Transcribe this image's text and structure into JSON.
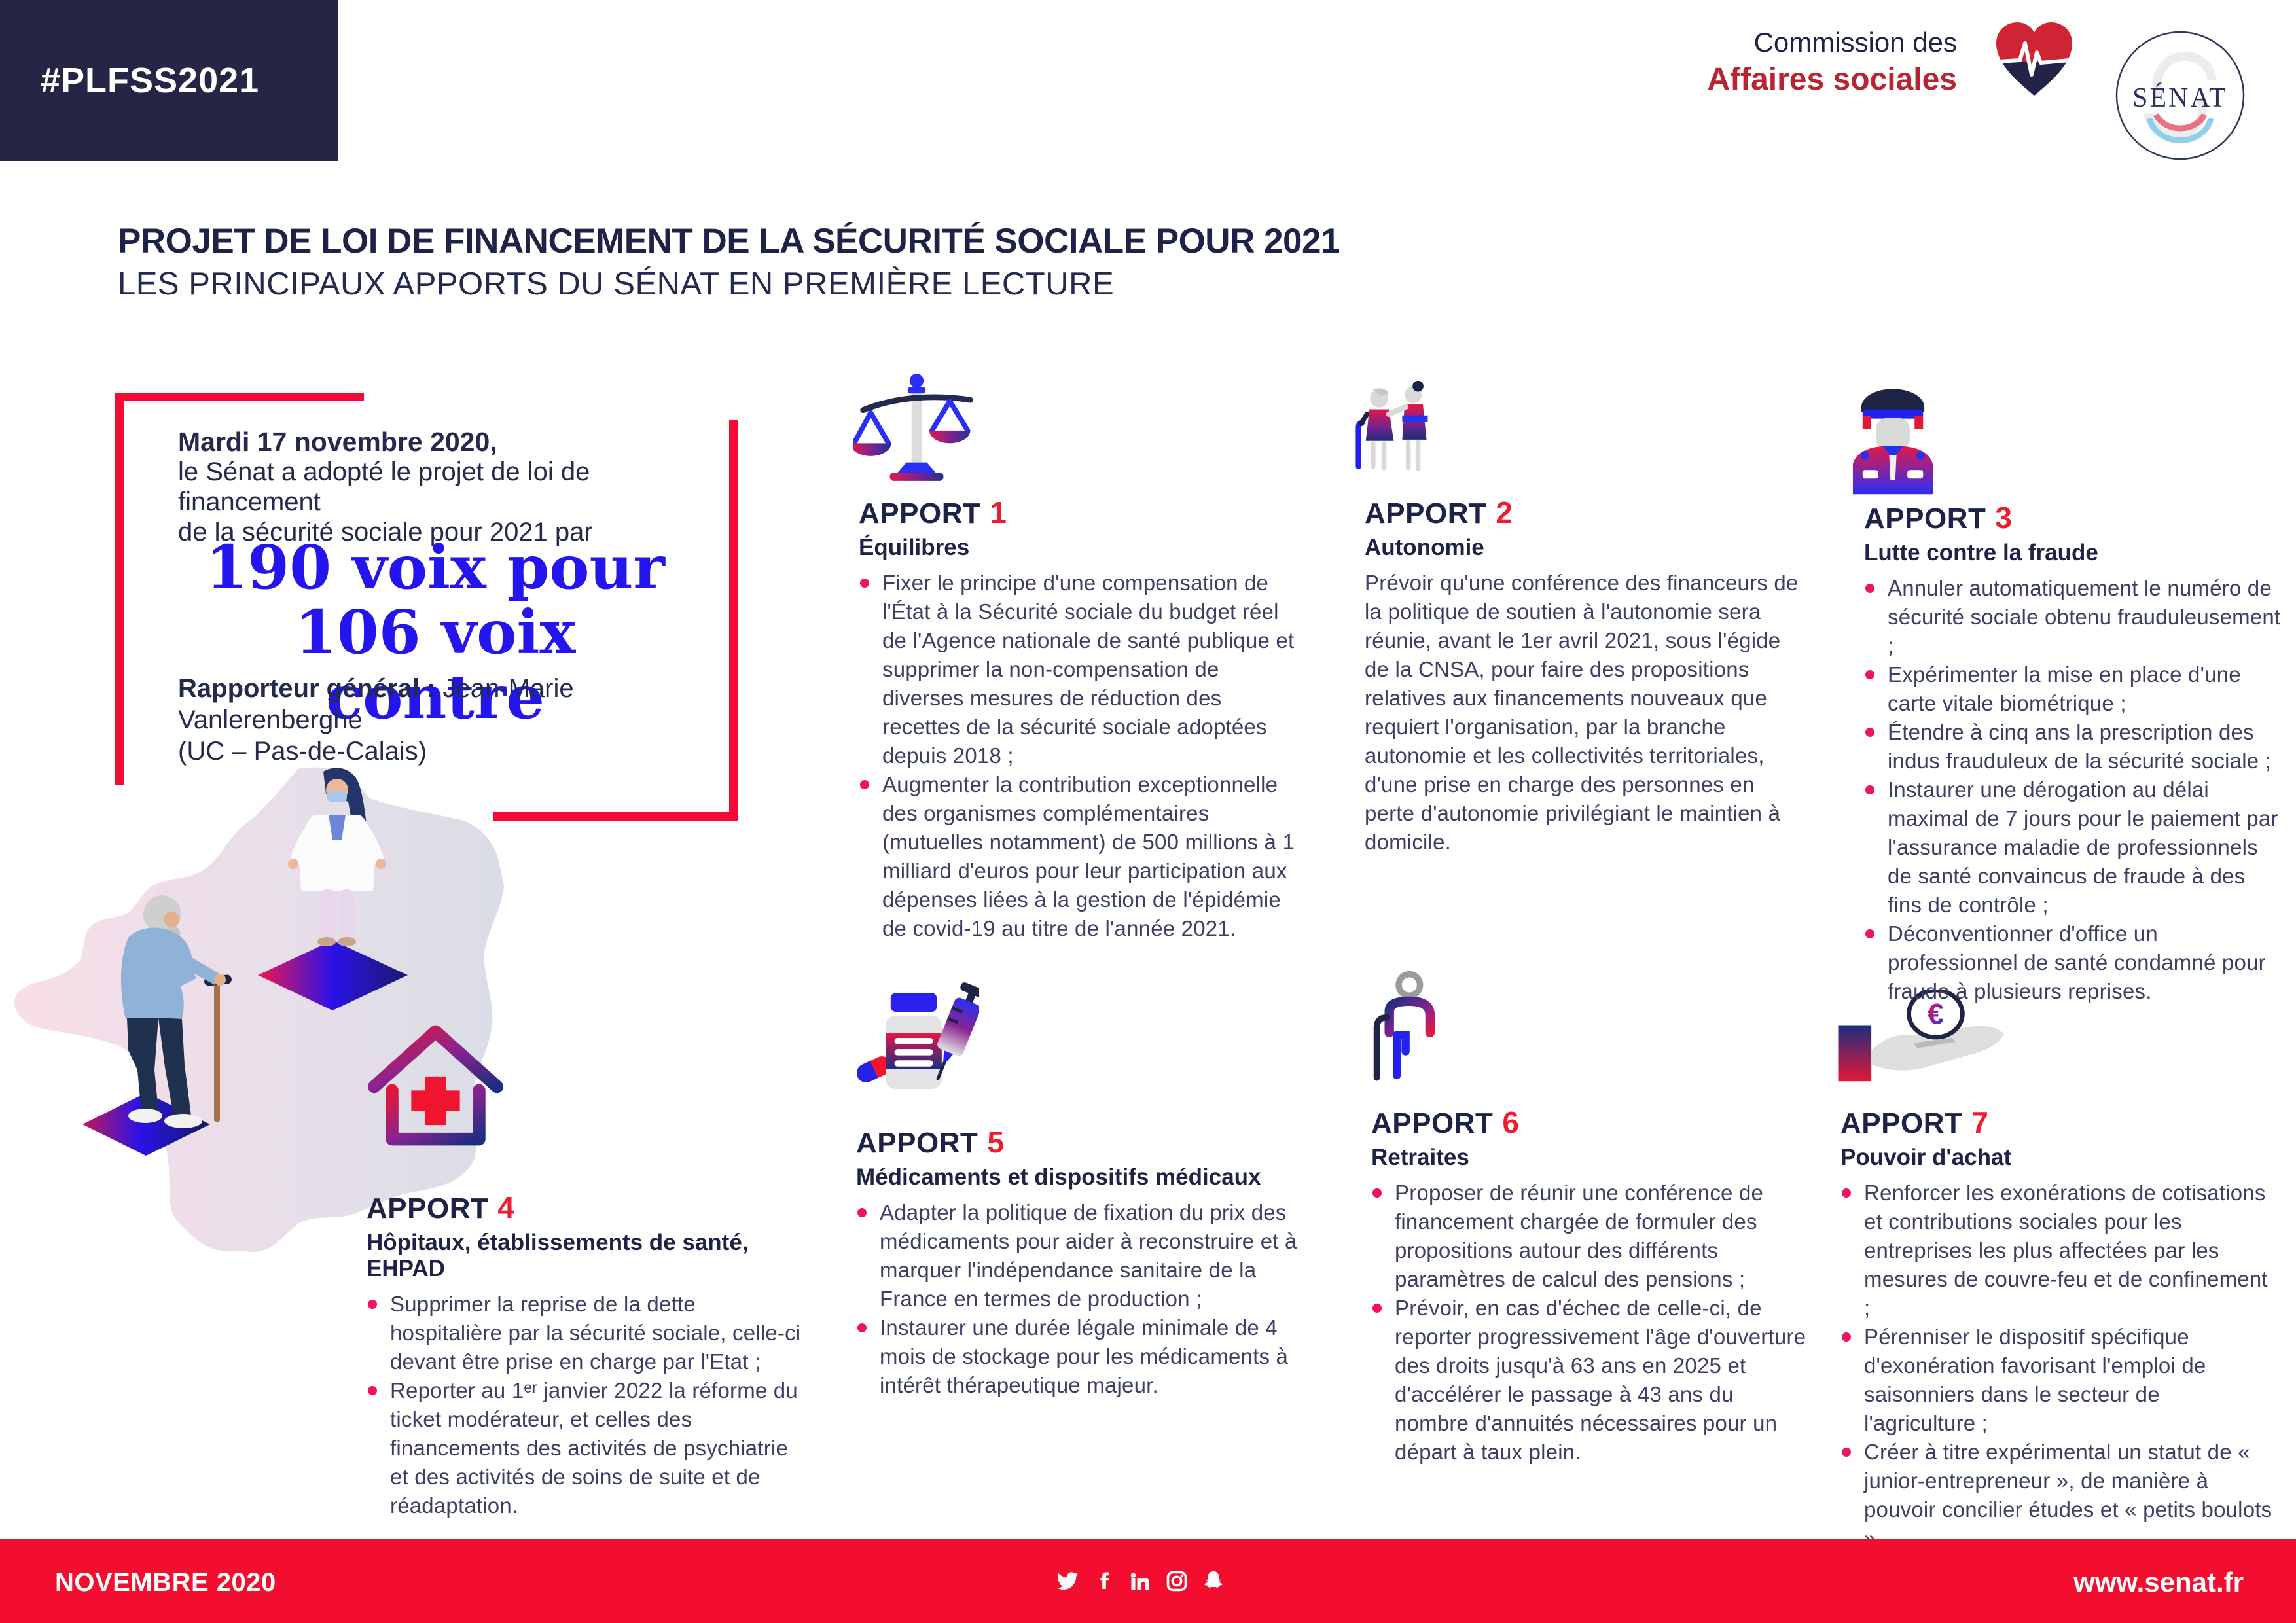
{
  "badge": {
    "hashtag": "#PLFSS2021"
  },
  "header": {
    "commission_line1": "Commission des",
    "commission_line2": "Affaires sociales",
    "senat_logo_text": "SÉNAT",
    "title_line1": "PROJET DE LOI DE FINANCEMENT DE LA SÉCURITÉ SOCIALE POUR 2021",
    "title_line2": "LES PRINCIPAUX APPORTS DU SÉNAT EN PREMIÈRE LECTURE"
  },
  "vote_box": {
    "date_bold": "Mardi 17 novembre 2020,",
    "line2": "le Sénat a adopté le projet de loi de financement",
    "line3": "de la sécurité sociale pour 2021 par",
    "votes_for": "190 voix pour",
    "votes_against": "106 voix contre",
    "rapporteur_label": "Rapporteur général :",
    "rapporteur_name": " Jean-Marie Vanlerenberghe",
    "rapporteur_line2": "(UC – Pas-de-Calais)"
  },
  "apports": [
    {
      "label": "APPORT",
      "number": "1",
      "subtitle": "Équilibres",
      "icon": "scales-icon",
      "bullets": [
        "Fixer le principe d'une compensation de l'État à la Sécurité sociale du budget réel de l'Agence nationale de santé publique et supprimer la non-compensation de diverses mesures de réduction des recettes de la sécurité sociale adoptées depuis 2018 ;",
        "Augmenter la contribution exceptionnelle des organismes complémentaires (mutuelles notamment) de 500 millions à 1 milliard d'euros pour leur participation aux dépenses liées à la gestion de l'épidémie de covid-19 au titre de l'année 2021."
      ]
    },
    {
      "label": "APPORT",
      "number": "2",
      "subtitle": "Autonomie",
      "icon": "elderly-and-caregiver-icon",
      "paragraph": "Prévoir qu'une conférence des financeurs de la politique de soutien à l'autonomie sera réunie, avant le 1er avril 2021, sous l'égide de la CNSA, pour faire des propositions relatives aux financements nouveaux que requiert l'organisation, par la branche autonomie et les collectivités territoriales, d'une prise en charge des personnes en perte d'autonomie privilégiant le maintien à domicile."
    },
    {
      "label": "APPORT",
      "number": "3",
      "subtitle": "Lutte contre la fraude",
      "icon": "police-officer-icon",
      "bullets": [
        "Annuler automatiquement le numéro de sécurité sociale obtenu frauduleusement ;",
        "Expérimenter la mise en place d'une carte vitale biométrique ;",
        "Étendre à cinq ans la prescription des indus frauduleux de la sécurité sociale ;",
        "Instaurer une dérogation au délai maximal de 7 jours pour le paiement par l'assurance maladie de professionnels de santé convaincus de fraude à des fins de contrôle ;",
        "Déconventionner d'office un professionnel de santé condamné pour fraude à plusieurs reprises."
      ]
    },
    {
      "label": "APPORT",
      "number": "4",
      "subtitle": "Hôpitaux, établissements de santé, EHPAD",
      "icon": "hospital-house-icon",
      "bullets": [
        "Supprimer la reprise de la dette hospitalière par la sécurité sociale, celle-ci devant être prise en charge par l'Etat ;",
        "Reporter au 1ᵉʳ janvier 2022 la réforme du ticket modérateur, et celles des financements des activités de psychiatrie et des activités de soins de suite et de réadaptation."
      ]
    },
    {
      "label": "APPORT",
      "number": "5",
      "subtitle": "Médicaments et dispositifs médicaux",
      "icon": "medicines-icon",
      "bullets": [
        "Adapter la politique de fixation du prix des médicaments pour aider à reconstruire et à marquer l'indépendance sanitaire de la France en termes de production ;",
        "Instaurer une durée légale minimale de 4 mois de stockage pour les médicaments à intérêt thérapeutique majeur."
      ]
    },
    {
      "label": "APPORT",
      "number": "6",
      "subtitle": "Retraites",
      "icon": "senior-person-icon",
      "bullets": [
        "Proposer de réunir une conférence de financement chargée de formuler des propositions autour des différents paramètres de calcul des pensions ;",
        "Prévoir, en cas d'échec de celle-ci, de reporter progressivement l'âge d'ouverture des droits jusqu'à 63 ans en 2025 et d'accélérer le passage à 43 ans du nombre d'annuités nécessaires pour un départ à taux plein."
      ]
    },
    {
      "label": "APPORT",
      "number": "7",
      "subtitle": "Pouvoir d'achat",
      "icon": "hand-euro-coin-icon",
      "bullets": [
        "Renforcer les exonérations de cotisations et contributions sociales pour les entreprises les plus affectées par les mesures de couvre-feu et de confinement ;",
        "Pérenniser le dispositif spécifique d'exonération favorisant l'emploi de saisonniers dans le secteur de l'agriculture ;",
        "Créer à titre expérimental un statut de « junior-entrepreneur », de manière à pouvoir concilier études et « petits boulots »."
      ]
    }
  ],
  "footer": {
    "date": "NOVEMBRE 2020",
    "site": "www.senat.fr",
    "social_icons": [
      "twitter",
      "facebook",
      "linkedin",
      "instagram",
      "snapchat"
    ]
  },
  "colors": {
    "navy_dark": "#262545",
    "navy_heading": "#1d2347",
    "body_text": "#3a3f63",
    "red_bright": "#f30d2e",
    "red_number": "#ee1c2e",
    "red_commission": "#b92433",
    "pink_bullet": "#f3125c",
    "blue_vote": "#2415ee"
  }
}
